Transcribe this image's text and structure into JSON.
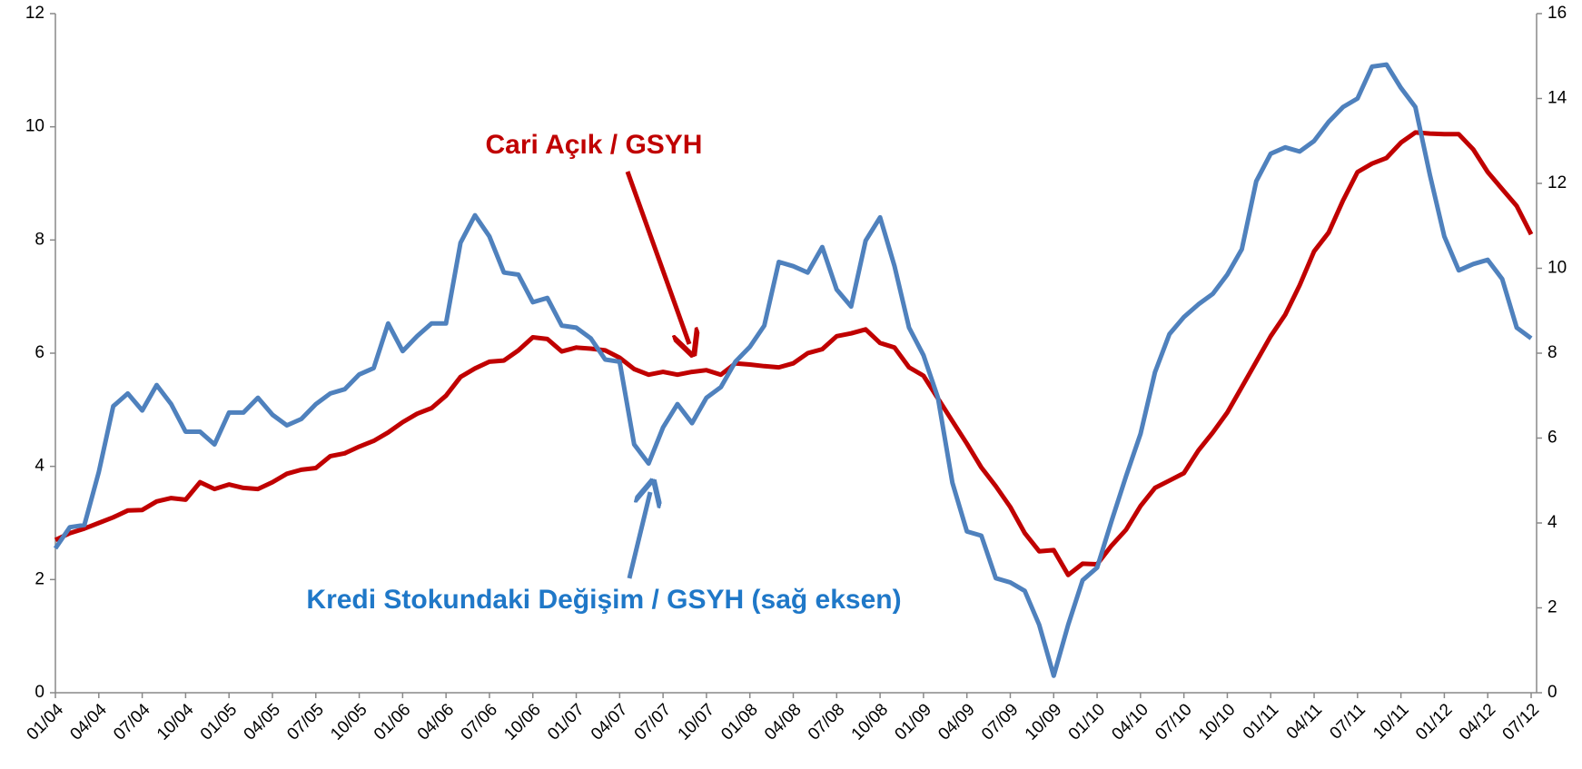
{
  "chart_data": {
    "type": "line",
    "categories": [
      "01/04",
      null,
      null,
      "04/04",
      null,
      null,
      "07/04",
      null,
      null,
      "10/04",
      null,
      null,
      "01/05",
      null,
      null,
      "04/05",
      null,
      null,
      "07/05",
      null,
      null,
      "10/05",
      null,
      null,
      "01/06",
      null,
      null,
      "04/06",
      null,
      null,
      "07/06",
      null,
      null,
      "10/06",
      null,
      null,
      "01/07",
      null,
      null,
      "04/07",
      null,
      null,
      "07/07",
      null,
      null,
      "10/07",
      null,
      null,
      "01/08",
      null,
      null,
      "04/08",
      null,
      null,
      "07/08",
      null,
      null,
      "10/08",
      null,
      null,
      "01/09",
      null,
      null,
      "04/09",
      null,
      null,
      "07/09",
      null,
      null,
      "10/09",
      null,
      null,
      "01/10",
      null,
      null,
      "04/10",
      null,
      null,
      "07/10",
      null,
      null,
      "10/10",
      null,
      null,
      "01/11",
      null,
      null,
      "04/11",
      null,
      null,
      "07/11",
      null,
      null,
      "10/11",
      null,
      null,
      "01/12",
      null,
      null,
      "04/12",
      null,
      null,
      "07/12"
    ],
    "series": [
      {
        "name": "Cari Açık / GSYH",
        "color": "#c00000",
        "axis": "y",
        "values": [
          2.7,
          2.82,
          2.9,
          3.0,
          3.1,
          3.22,
          3.23,
          3.38,
          3.44,
          3.41,
          3.72,
          3.6,
          3.68,
          3.62,
          3.6,
          3.72,
          3.87,
          3.94,
          3.97,
          4.18,
          4.23,
          4.35,
          4.45,
          4.6,
          4.78,
          4.93,
          5.03,
          5.25,
          5.58,
          5.73,
          5.85,
          5.87,
          6.05,
          6.28,
          6.25,
          6.03,
          6.1,
          6.08,
          6.05,
          5.92,
          5.72,
          5.62,
          5.67,
          5.62,
          5.67,
          5.7,
          5.62,
          5.82,
          5.8,
          5.77,
          5.75,
          5.82,
          6.0,
          6.07,
          6.3,
          6.35,
          6.42,
          6.18,
          6.1,
          5.75,
          5.6,
          5.2,
          4.8,
          4.4,
          3.98,
          3.65,
          3.28,
          2.82,
          2.5,
          2.52,
          2.08,
          2.28,
          2.27,
          2.6,
          2.88,
          3.3,
          3.62,
          3.75,
          3.88,
          4.28,
          4.6,
          4.95,
          5.4,
          5.85,
          6.3,
          6.68,
          7.2,
          7.8,
          8.13,
          8.7,
          9.2,
          9.35,
          9.45,
          9.72,
          9.9,
          9.88,
          9.87,
          9.87,
          9.6,
          9.2,
          8.9,
          8.6,
          8.1
        ]
      },
      {
        "name": "Kredi Stokundaki Değişim / GSYH (sağ eksen)",
        "color": "#4f81bd",
        "axis": "y2",
        "values": [
          3.4,
          3.9,
          3.95,
          5.2,
          6.75,
          7.05,
          6.65,
          7.25,
          6.8,
          6.15,
          6.15,
          5.85,
          6.6,
          6.6,
          6.95,
          6.55,
          6.3,
          6.45,
          6.8,
          7.05,
          7.15,
          7.5,
          7.65,
          8.7,
          8.05,
          8.4,
          8.7,
          8.7,
          10.6,
          11.25,
          10.75,
          9.9,
          9.85,
          9.2,
          9.3,
          8.65,
          8.6,
          8.35,
          7.85,
          7.8,
          5.85,
          5.4,
          6.25,
          6.8,
          6.35,
          6.95,
          7.2,
          7.8,
          8.15,
          8.65,
          10.15,
          10.05,
          9.9,
          10.5,
          9.5,
          9.1,
          10.65,
          11.2,
          10.05,
          8.6,
          7.95,
          6.95,
          4.95,
          3.8,
          3.7,
          2.7,
          2.6,
          2.4,
          1.6,
          0.4,
          1.6,
          2.65,
          2.95,
          4.05,
          5.1,
          6.1,
          7.55,
          8.45,
          8.85,
          9.15,
          9.4,
          9.85,
          10.45,
          12.05,
          12.7,
          12.85,
          12.75,
          13.0,
          13.45,
          13.8,
          14.0,
          14.75,
          14.8,
          14.25,
          13.8,
          12.2,
          10.75,
          9.95,
          10.1,
          10.2,
          9.75,
          8.6,
          8.35
        ]
      }
    ],
    "ylim": [
      0,
      12
    ],
    "yticks": [
      0,
      2,
      4,
      6,
      8,
      10,
      12
    ],
    "y2lim": [
      0,
      16
    ],
    "y2ticks": [
      0,
      2,
      4,
      6,
      8,
      10,
      12,
      14,
      16
    ],
    "grid": false
  }
}
